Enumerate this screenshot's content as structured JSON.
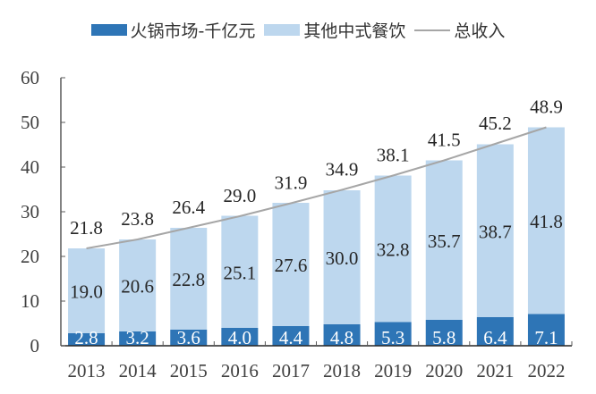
{
  "chart_data": {
    "type": "bar",
    "stacked": true,
    "title": "",
    "xlabel": "",
    "ylabel": "",
    "ylim": [
      0,
      60
    ],
    "yticks": [
      0,
      10,
      20,
      30,
      40,
      50,
      60
    ],
    "grid": false,
    "legend_position": "top",
    "categories": [
      "2013",
      "2014",
      "2015",
      "2016",
      "2017",
      "2018",
      "2019",
      "2020",
      "2021",
      "2022"
    ],
    "series": [
      {
        "name": "火锅市场-千亿元",
        "kind": "bar",
        "color": "#2E75B6",
        "values": [
          2.8,
          3.2,
          3.6,
          4.0,
          4.4,
          4.8,
          5.3,
          5.8,
          6.4,
          7.1
        ]
      },
      {
        "name": "其他中式餐饮",
        "kind": "bar",
        "color": "#BDD7EE",
        "values": [
          19.0,
          20.6,
          22.8,
          25.1,
          27.6,
          30.0,
          32.8,
          35.7,
          38.7,
          41.8
        ]
      },
      {
        "name": "总收入",
        "kind": "line",
        "color": "#A6A6A6",
        "values": [
          21.8,
          23.8,
          26.4,
          29.0,
          31.9,
          34.9,
          38.1,
          41.5,
          45.2,
          48.9
        ]
      }
    ]
  }
}
